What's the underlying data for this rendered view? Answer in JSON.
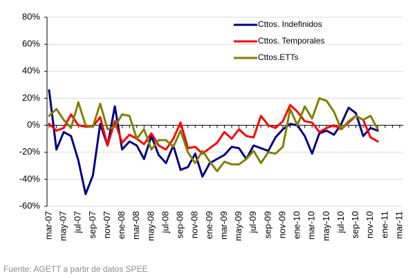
{
  "chart_data": {
    "type": "line",
    "source": "Fuente: AGETT a partir de datos SPEE",
    "categories": [
      "mar-07",
      null,
      "may-07",
      null,
      "jul-07",
      null,
      "sep-07",
      null,
      "nov-07",
      null,
      "ene-08",
      null,
      "mar-08",
      null,
      "may-08",
      null,
      "jul-08",
      null,
      "sep-08",
      null,
      "nov-08",
      null,
      "ene-09",
      null,
      "mar-09",
      null,
      "may-09",
      null,
      "jul-09",
      null,
      "sep-09",
      null,
      "nov-09",
      null,
      "ene-10",
      null,
      "mar-10",
      null,
      "may-10",
      null,
      "jul-10",
      null,
      "sep-10",
      null,
      "nov-10",
      null,
      "ene-11",
      null,
      "mar-11"
    ],
    "series": [
      {
        "name": "Cttos. Indefinidos",
        "color": "#000080",
        "values": [
          26,
          -18,
          -5,
          -8,
          -26,
          -51,
          -37,
          1,
          -15,
          14,
          -18,
          -12,
          -15,
          -25,
          -8,
          -22,
          -28,
          -15,
          -33,
          -31,
          -21,
          -38,
          -28,
          -25,
          -22,
          -16,
          -17,
          -25,
          -15,
          -17,
          -19,
          -9,
          -3,
          1,
          0,
          -8,
          -21,
          -6,
          -4,
          -7,
          1,
          13,
          9,
          -8,
          -2,
          -4,
          null,
          null,
          null
        ]
      },
      {
        "name": "Cttos. Temporales",
        "color": "#ff0000",
        "values": [
          1,
          -4,
          -2,
          8,
          0,
          -1,
          -1,
          6,
          -15,
          3,
          -13,
          -7,
          -10,
          -14,
          -6,
          -15,
          -18,
          -10,
          2,
          -17,
          -16,
          -21,
          -17,
          -13,
          -5,
          -10,
          -3,
          -8,
          -9,
          7,
          0,
          -2,
          3,
          15,
          10,
          3,
          2,
          -5,
          -2,
          0,
          -3,
          2,
          7,
          4,
          -9,
          -12,
          null,
          null,
          null
        ]
      },
      {
        "name": "Cttos.ETTs",
        "color": "#808000",
        "values": [
          7,
          12,
          4,
          -2,
          17,
          0,
          -1,
          16,
          -3,
          -1,
          8,
          7,
          -10,
          -3,
          -18,
          -11,
          -11,
          -16,
          -4,
          -20,
          -28,
          -19,
          -27,
          -34,
          -27,
          -29,
          -29,
          -25,
          -19,
          -28,
          -20,
          -21,
          -16,
          12,
          0,
          14,
          5,
          20,
          18,
          10,
          -3,
          3,
          7,
          4,
          7,
          -3,
          null,
          null,
          null
        ]
      }
    ],
    "ylim": [
      -60,
      80
    ],
    "yticks": [
      {
        "value": -60,
        "label": "-60%"
      },
      {
        "value": -40,
        "label": "-40%"
      },
      {
        "value": -20,
        "label": "-20%"
      },
      {
        "value": 0,
        "label": "0%"
      },
      {
        "value": 20,
        "label": "20%"
      },
      {
        "value": 40,
        "label": "40%"
      },
      {
        "value": 60,
        "label": "60%"
      },
      {
        "value": 80,
        "label": "80%"
      }
    ],
    "grid": true,
    "legend": "top-right"
  }
}
